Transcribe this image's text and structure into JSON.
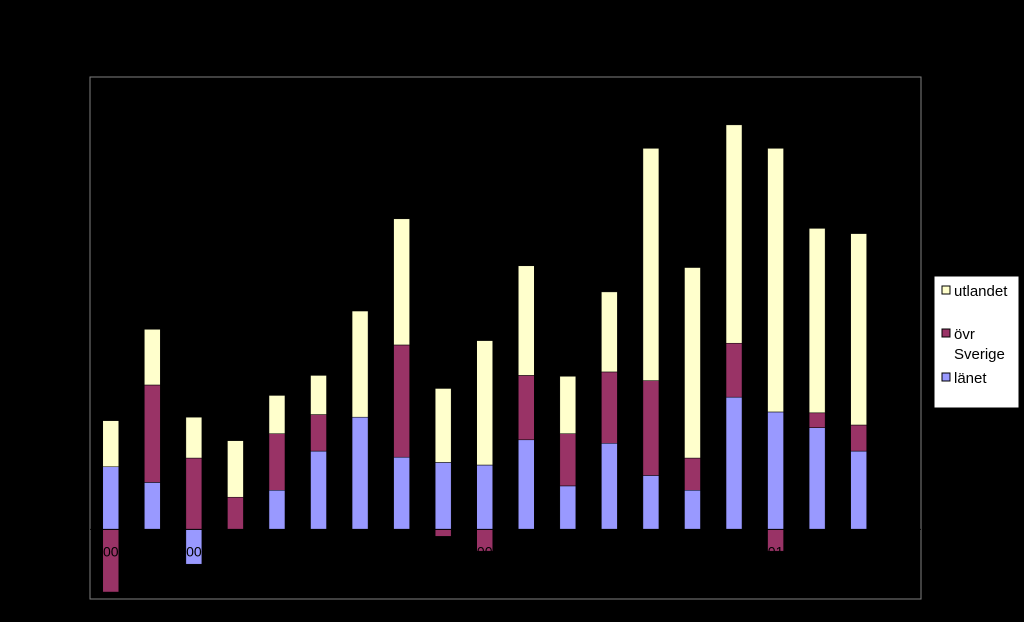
{
  "chart_data": {
    "type": "bar",
    "stacked": true,
    "title": "",
    "xlabel": "",
    "ylabel": "",
    "ylim": [
      -80,
      520
    ],
    "grid": false,
    "legend_position": "right",
    "categories": [
      "",
      "",
      "",
      "",
      "",
      "",
      "",
      "",
      "",
      "",
      "",
      "",
      "",
      "",
      "",
      "",
      "",
      "",
      "",
      ""
    ],
    "x_tick_labels": [
      {
        "index": 0,
        "text": "00"
      },
      {
        "index": 2,
        "text": "00"
      },
      {
        "index": 9,
        "text": "00"
      },
      {
        "index": 16,
        "text": "01"
      }
    ],
    "series": [
      {
        "name": "länet",
        "color": "#9999FF",
        "values": [
          72,
          54,
          -40,
          0,
          45,
          90,
          129,
          83,
          77,
          74,
          103,
          50,
          99,
          62,
          45,
          152,
          135,
          117,
          90,
          0
        ]
      },
      {
        "name": "övr Sverige",
        "color": "#993366",
        "values": [
          -72,
          112,
          82,
          37,
          65,
          42,
          0,
          129,
          -8,
          -25,
          74,
          60,
          82,
          109,
          37,
          62,
          -25,
          17,
          30,
          0
        ]
      },
      {
        "name": "utlandet",
        "color": "#FFFFCC",
        "values": [
          53,
          64,
          47,
          65,
          44,
          45,
          122,
          145,
          85,
          143,
          126,
          66,
          92,
          267,
          219,
          251,
          303,
          212,
          220,
          0
        ]
      }
    ]
  },
  "legend": {
    "items": [
      {
        "label": "utlandet",
        "color": "#FFFFCC"
      },
      {
        "label": "övr",
        "label_line2": "Sverige",
        "color": "#993366"
      },
      {
        "label": "länet",
        "color": "#9999FF"
      }
    ]
  }
}
